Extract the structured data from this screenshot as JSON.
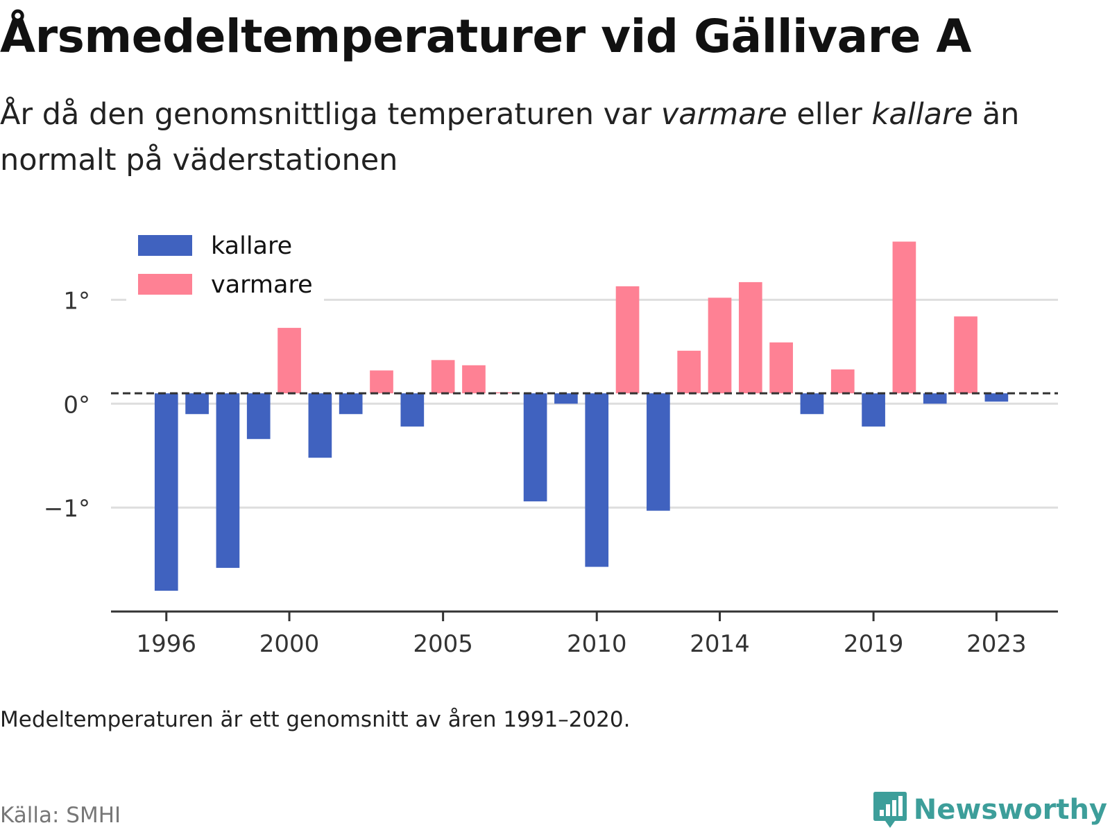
{
  "title": "Årsmedeltemperaturer vid Gällivare A",
  "subtitle": {
    "part1": "År då den genomsnittliga temperaturen var ",
    "warm_word": "varmare",
    "part2": " eller ",
    "cold_word": "kallare",
    "part3": " än normalt på väderstationen"
  },
  "footnote": "Medeltemperaturen är ett genomsnitt av åren 1991–2020.",
  "source": "Källa: SMHI",
  "brand": "Newsworthy",
  "colors": {
    "cold": "#4062bf",
    "warm": "#fe8194",
    "grid": "#dedede",
    "axis": "#333333",
    "brand": "#3d9e9a"
  },
  "chart_data": {
    "type": "bar",
    "legend": [
      {
        "label": "kallare",
        "color": "#4062bf"
      },
      {
        "label": "varmare",
        "color": "#fe8194"
      }
    ],
    "legend_position": "top-left",
    "x": [
      1996,
      1997,
      1998,
      1999,
      2000,
      2001,
      2002,
      2003,
      2004,
      2005,
      2006,
      2007,
      2008,
      2009,
      2010,
      2011,
      2012,
      2013,
      2014,
      2015,
      2016,
      2017,
      2018,
      2019,
      2020,
      2021,
      2022,
      2023
    ],
    "values": [
      -1.8,
      -0.1,
      -1.58,
      -0.34,
      0.73,
      -0.52,
      -0.1,
      0.32,
      -0.22,
      0.42,
      0.37,
      0.11,
      -0.94,
      0.0,
      -1.57,
      1.13,
      -1.03,
      0.51,
      1.02,
      1.17,
      0.59,
      -0.1,
      0.33,
      -0.22,
      1.56,
      0.0,
      0.84,
      0.02
    ],
    "baseline": 0.1,
    "x_ticks": [
      1996,
      2000,
      2005,
      2010,
      2014,
      2019,
      2023
    ],
    "y_ticks": [
      {
        "value": 1,
        "label": "1°"
      },
      {
        "value": 0,
        "label": "0°"
      },
      {
        "value": -1,
        "label": "−1°"
      }
    ],
    "ylim": [
      -2.0,
      1.75
    ],
    "xlim": [
      1994.2,
      2025.0
    ],
    "grid": true
  }
}
